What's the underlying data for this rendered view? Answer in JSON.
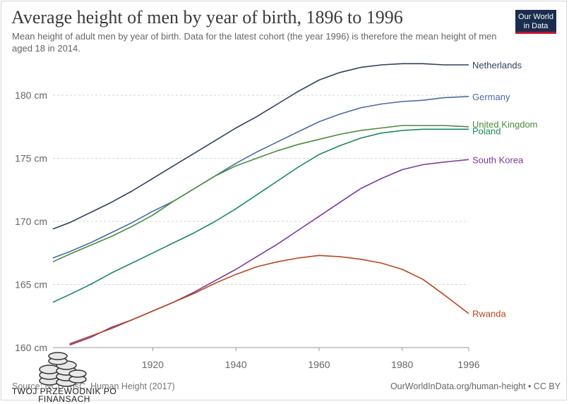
{
  "header": {
    "title": "Average height of men by year of birth, 1896 to 1996",
    "subtitle": "Mean height of adult men by year of birth. Data for the latest cohort (the year 1996) is therefore the mean height of men aged 18 in 2014.",
    "logo_line1": "Our World",
    "logo_line2": "in Data"
  },
  "footer": {
    "source": "Source: NCD RisC, Human Height (2017)",
    "credit": "OurWorldInData.org/human-height • CC BY"
  },
  "watermark": {
    "line1": "TWÓJ PRZEWODNIK PO",
    "line2": "FINANSACH"
  },
  "chart_data": {
    "type": "line",
    "title": "Average height of men by year of birth, 1896 to 1996",
    "xlabel": "",
    "ylabel": "",
    "xlim": [
      1896,
      1996
    ],
    "ylim": [
      160,
      183
    ],
    "x_ticks": [
      1920,
      1940,
      1960,
      1980,
      1996
    ],
    "y_ticks": [
      160,
      165,
      170,
      175,
      180
    ],
    "y_tick_suffix": " cm",
    "grid": "horizontal-dashed",
    "legend": "end-of-line labels",
    "series": [
      {
        "name": "Netherlands",
        "color": "#2f3f5e",
        "points": [
          [
            1896,
            169.4
          ],
          [
            1900,
            169.9
          ],
          [
            1905,
            170.7
          ],
          [
            1910,
            171.5
          ],
          [
            1915,
            172.4
          ],
          [
            1920,
            173.4
          ],
          [
            1925,
            174.4
          ],
          [
            1930,
            175.4
          ],
          [
            1935,
            176.4
          ],
          [
            1940,
            177.4
          ],
          [
            1945,
            178.3
          ],
          [
            1950,
            179.3
          ],
          [
            1955,
            180.3
          ],
          [
            1960,
            181.2
          ],
          [
            1965,
            181.8
          ],
          [
            1970,
            182.2
          ],
          [
            1975,
            182.4
          ],
          [
            1980,
            182.5
          ],
          [
            1985,
            182.5
          ],
          [
            1990,
            182.4
          ],
          [
            1996,
            182.4
          ]
        ]
      },
      {
        "name": "Germany",
        "color": "#4a6aa5",
        "points": [
          [
            1896,
            167.1
          ],
          [
            1900,
            167.6
          ],
          [
            1905,
            168.3
          ],
          [
            1910,
            169.1
          ],
          [
            1915,
            169.9
          ],
          [
            1920,
            170.8
          ],
          [
            1925,
            171.6
          ],
          [
            1930,
            172.6
          ],
          [
            1935,
            173.6
          ],
          [
            1940,
            174.6
          ],
          [
            1945,
            175.5
          ],
          [
            1950,
            176.3
          ],
          [
            1955,
            177.1
          ],
          [
            1960,
            177.9
          ],
          [
            1965,
            178.5
          ],
          [
            1970,
            179.0
          ],
          [
            1975,
            179.3
          ],
          [
            1980,
            179.5
          ],
          [
            1985,
            179.6
          ],
          [
            1990,
            179.8
          ],
          [
            1996,
            179.9
          ]
        ]
      },
      {
        "name": "United Kingdom",
        "color": "#4a8a3a",
        "points": [
          [
            1896,
            166.8
          ],
          [
            1900,
            167.4
          ],
          [
            1905,
            168.1
          ],
          [
            1910,
            168.8
          ],
          [
            1915,
            169.6
          ],
          [
            1920,
            170.5
          ],
          [
            1925,
            171.6
          ],
          [
            1930,
            172.6
          ],
          [
            1935,
            173.6
          ],
          [
            1940,
            174.4
          ],
          [
            1945,
            175.0
          ],
          [
            1950,
            175.6
          ],
          [
            1955,
            176.1
          ],
          [
            1960,
            176.5
          ],
          [
            1965,
            176.9
          ],
          [
            1970,
            177.2
          ],
          [
            1975,
            177.4
          ],
          [
            1980,
            177.6
          ],
          [
            1985,
            177.6
          ],
          [
            1990,
            177.6
          ],
          [
            1996,
            177.5
          ]
        ]
      },
      {
        "name": "Poland",
        "color": "#1a8a5a",
        "points": [
          [
            1896,
            163.6
          ],
          [
            1900,
            164.2
          ],
          [
            1905,
            165.0
          ],
          [
            1910,
            165.9
          ],
          [
            1915,
            166.7
          ],
          [
            1920,
            167.5
          ],
          [
            1925,
            168.3
          ],
          [
            1930,
            169.1
          ],
          [
            1935,
            170.0
          ],
          [
            1940,
            171.0
          ],
          [
            1945,
            172.1
          ],
          [
            1950,
            173.2
          ],
          [
            1955,
            174.3
          ],
          [
            1960,
            175.3
          ],
          [
            1965,
            176.0
          ],
          [
            1970,
            176.6
          ],
          [
            1975,
            177.0
          ],
          [
            1980,
            177.2
          ],
          [
            1985,
            177.3
          ],
          [
            1990,
            177.3
          ],
          [
            1996,
            177.3
          ]
        ]
      },
      {
        "name": "South Korea",
        "color": "#7a3a9a",
        "points": [
          [
            1900,
            160.2
          ],
          [
            1905,
            160.8
          ],
          [
            1910,
            161.6
          ],
          [
            1915,
            162.2
          ],
          [
            1920,
            162.9
          ],
          [
            1925,
            163.6
          ],
          [
            1930,
            164.4
          ],
          [
            1935,
            165.3
          ],
          [
            1940,
            166.2
          ],
          [
            1945,
            167.2
          ],
          [
            1950,
            168.2
          ],
          [
            1955,
            169.3
          ],
          [
            1960,
            170.4
          ],
          [
            1965,
            171.5
          ],
          [
            1970,
            172.6
          ],
          [
            1975,
            173.4
          ],
          [
            1980,
            174.1
          ],
          [
            1985,
            174.5
          ],
          [
            1990,
            174.7
          ],
          [
            1996,
            174.9
          ]
        ]
      },
      {
        "name": "Rwanda",
        "color": "#b8461e",
        "points": [
          [
            1900,
            160.3
          ],
          [
            1905,
            160.9
          ],
          [
            1910,
            161.5
          ],
          [
            1915,
            162.2
          ],
          [
            1920,
            162.9
          ],
          [
            1925,
            163.6
          ],
          [
            1930,
            164.3
          ],
          [
            1935,
            165.1
          ],
          [
            1940,
            165.8
          ],
          [
            1945,
            166.4
          ],
          [
            1950,
            166.8
          ],
          [
            1955,
            167.1
          ],
          [
            1960,
            167.3
          ],
          [
            1965,
            167.2
          ],
          [
            1970,
            167.0
          ],
          [
            1975,
            166.7
          ],
          [
            1980,
            166.2
          ],
          [
            1985,
            165.4
          ],
          [
            1990,
            164.2
          ],
          [
            1996,
            162.7
          ]
        ]
      }
    ]
  }
}
